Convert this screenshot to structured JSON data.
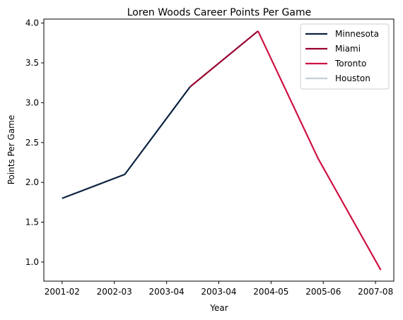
{
  "chart_data": {
    "type": "line",
    "title": "Loren Woods Career Points Per Game",
    "xlabel": "Year",
    "ylabel": "Points Per Game",
    "x_ticks": [
      "2001-02",
      "2002-03",
      "2003-04",
      "2003-04",
      "2004-05",
      "2005-06",
      "2007-08"
    ],
    "y_ticks": [
      "1.0",
      "1.5",
      "2.0",
      "2.5",
      "3.0",
      "3.5",
      "4.0"
    ],
    "ylim": [
      0.76,
      4.05
    ],
    "xlim": [
      -0.35,
      6.35
    ],
    "points": [
      {
        "x": 0,
        "y": 1.8
      },
      {
        "x": 1.2,
        "y": 2.1
      },
      {
        "x": 2.45,
        "y": 3.2
      },
      {
        "x": 3.75,
        "y": 3.9
      },
      {
        "x": 4.9,
        "y": 2.3
      },
      {
        "x": 6.1,
        "y": 0.9
      }
    ],
    "series": [
      {
        "name": "Minnesota",
        "color": "#0c2340",
        "from": 0,
        "to": 2
      },
      {
        "name": "Miami",
        "color": "#98002e",
        "from": 2,
        "to": 3
      },
      {
        "name": "Toronto",
        "color": "#ce1141",
        "from": 3,
        "to": 5
      },
      {
        "name": "Houston",
        "color": "#c4ced4",
        "from": null,
        "to": null
      }
    ],
    "legend_position": "top-right",
    "grid": false
  }
}
